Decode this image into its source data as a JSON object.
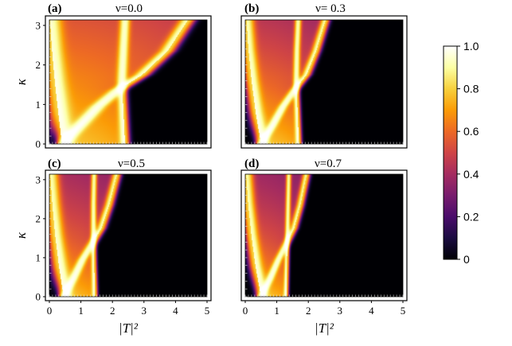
{
  "chart_data": [
    {
      "type": "heatmap",
      "panel_label": "(a)",
      "title": "ν=0.0",
      "nu": 0.0,
      "xlabel": "",
      "ylabel": "κ",
      "xlim": [
        0,
        5
      ],
      "ylim": [
        0,
        3.14
      ],
      "x_ticks": [],
      "y_ticks": [
        "0",
        "1",
        "2",
        "3"
      ],
      "ridges": [
        {
          "x": [
            0.4,
            0.28,
            0.17,
            0.08,
            0.02
          ],
          "y": [
            0.0,
            0.8,
            1.6,
            2.4,
            3.14
          ],
          "w": 0.3
        },
        {
          "x": [
            0.4,
            0.95,
            1.55,
            2.15,
            2.95,
            3.75,
            4.4
          ],
          "y": [
            0.0,
            0.45,
            0.95,
            1.35,
            1.75,
            2.35,
            3.14
          ],
          "w": 0.22
        },
        {
          "x": [
            2.4,
            2.35,
            2.3,
            2.35,
            2.4
          ],
          "y": [
            0.0,
            0.8,
            1.6,
            2.4,
            3.14
          ],
          "w": 0.14
        }
      ]
    },
    {
      "type": "heatmap",
      "panel_label": "(b)",
      "title": "ν= 0.3",
      "nu": 0.3,
      "xlabel": "",
      "ylabel": "",
      "xlim": [
        0,
        5
      ],
      "ylim": [
        0,
        3.14
      ],
      "x_ticks": [],
      "y_ticks": [],
      "ridges": [
        {
          "x": [
            0.5,
            0.33,
            0.2,
            0.1,
            0.04
          ],
          "y": [
            0.0,
            0.8,
            1.6,
            2.4,
            3.14
          ],
          "w": 0.2
        },
        {
          "x": [
            0.5,
            0.85,
            1.2,
            1.55,
            1.95,
            2.25,
            2.55
          ],
          "y": [
            0.0,
            0.45,
            0.95,
            1.35,
            1.75,
            2.35,
            3.14
          ],
          "w": 0.13
        },
        {
          "x": [
            1.7,
            1.66,
            1.62,
            1.64,
            1.68
          ],
          "y": [
            0.0,
            0.8,
            1.6,
            2.4,
            3.14
          ],
          "w": 0.09
        }
      ]
    },
    {
      "type": "heatmap",
      "panel_label": "(c)",
      "title": "ν=0.5",
      "nu": 0.5,
      "xlabel": "|T|²",
      "ylabel": "κ",
      "xlim": [
        0,
        5
      ],
      "ylim": [
        0,
        3.14
      ],
      "x_ticks": [
        "0",
        "1",
        "2",
        "3",
        "4",
        "5"
      ],
      "y_ticks": [
        "0",
        "1",
        "2",
        "3"
      ],
      "ridges": [
        {
          "x": [
            0.45,
            0.3,
            0.18,
            0.09,
            0.03
          ],
          "y": [
            0.0,
            0.8,
            1.6,
            2.4,
            3.14
          ],
          "w": 0.22
        },
        {
          "x": [
            0.45,
            0.75,
            1.05,
            1.35,
            1.65,
            1.9,
            2.15
          ],
          "y": [
            0.0,
            0.45,
            0.95,
            1.35,
            1.75,
            2.35,
            3.14
          ],
          "w": 0.13
        },
        {
          "x": [
            1.45,
            1.42,
            1.4,
            1.4,
            1.42
          ],
          "y": [
            0.0,
            0.8,
            1.6,
            2.4,
            3.14
          ],
          "w": 0.08
        }
      ]
    },
    {
      "type": "heatmap",
      "panel_label": "(d)",
      "title": "ν=0.7",
      "nu": 0.7,
      "xlabel": "|T|²",
      "ylabel": "",
      "xlim": [
        0,
        5
      ],
      "ylim": [
        0,
        3.14
      ],
      "x_ticks": [
        "0",
        "1",
        "2",
        "3",
        "4",
        "5"
      ],
      "y_ticks": [],
      "ridges": [
        {
          "x": [
            0.5,
            0.32,
            0.19,
            0.09,
            0.03
          ],
          "y": [
            0.0,
            0.8,
            1.6,
            2.4,
            3.14
          ],
          "w": 0.18
        },
        {
          "x": [
            0.5,
            0.78,
            1.05,
            1.3,
            1.55,
            1.75,
            1.95
          ],
          "y": [
            0.0,
            0.45,
            0.95,
            1.35,
            1.75,
            2.35,
            3.14
          ],
          "w": 0.11
        },
        {
          "x": [
            1.3,
            1.32,
            1.34,
            1.36,
            1.38
          ],
          "y": [
            0.0,
            0.8,
            1.6,
            2.4,
            3.14
          ],
          "w": 0.07
        }
      ]
    }
  ],
  "colorbar": {
    "range": [
      0,
      1
    ],
    "tick_labels": [
      "0",
      "0.2",
      "0.4",
      "0.6",
      "0.8",
      "1.0"
    ],
    "colors": [
      "#000004",
      "#1b0c41",
      "#4a0c6b",
      "#781c6d",
      "#a52c60",
      "#cf4446",
      "#ed6925",
      "#fb9b06",
      "#f7d13d",
      "#fcffa4",
      "#ffffff"
    ]
  }
}
